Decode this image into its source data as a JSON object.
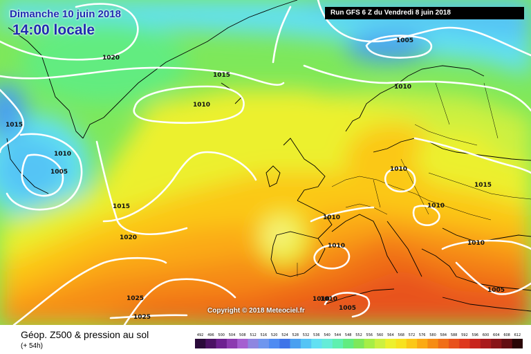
{
  "header": {
    "date": "Dimanche 10 juin 2018",
    "hour": "14:00 locale",
    "run": "Run GFS 6 Z du Vendredi 8 juin 2018"
  },
  "copyright": "Copyright © 2018 Meteociel.fr",
  "legend": {
    "title": "Géop. Z500 & pression au sol",
    "subtitle": "(+ 54h)",
    "scale_values": [
      "492",
      "496",
      "500",
      "504",
      "508",
      "512",
      "516",
      "520",
      "524",
      "528",
      "532",
      "536",
      "540",
      "544",
      "548",
      "552",
      "556",
      "560",
      "564",
      "568",
      "572",
      "576",
      "580",
      "584",
      "588",
      "592",
      "596",
      "600",
      "604",
      "608",
      "612"
    ],
    "scale_colors": [
      "#2a0a3a",
      "#4b1264",
      "#6d2190",
      "#8c3bb0",
      "#a55fd0",
      "#8e86e0",
      "#6f96ee",
      "#4f8bf2",
      "#3f74e8",
      "#4aa0f0",
      "#55c4f5",
      "#62e0f2",
      "#66ecd8",
      "#5ff0b0",
      "#62ec80",
      "#7ee85a",
      "#a6ee46",
      "#ccf040",
      "#ecf02e",
      "#f7e220",
      "#fbc818",
      "#fbaa14",
      "#f68c14",
      "#f06e18",
      "#e8521c",
      "#de381e",
      "#c8251e",
      "#a91a1c",
      "#881418",
      "#620e12",
      "#2a0606"
    ]
  },
  "isobars": [
    {
      "value": "1020"
    },
    {
      "value": "1015"
    },
    {
      "value": "1010"
    },
    {
      "value": "1015"
    },
    {
      "value": "1010"
    },
    {
      "value": "1005"
    },
    {
      "value": "1005"
    },
    {
      "value": "1010"
    },
    {
      "value": "1010"
    },
    {
      "value": "1015"
    },
    {
      "value": "1010"
    },
    {
      "value": "1015"
    },
    {
      "value": "1010"
    },
    {
      "value": "1010"
    },
    {
      "value": "1020"
    },
    {
      "value": "1010"
    },
    {
      "value": "1010"
    },
    {
      "value": "1025"
    },
    {
      "value": "1025"
    },
    {
      "value": "1010"
    },
    {
      "value": "1005"
    },
    {
      "value": "1005"
    }
  ]
}
